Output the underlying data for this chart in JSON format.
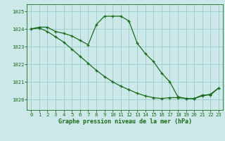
{
  "title": "Graphe pression niveau de la mer (hPa)",
  "background_color": "#cce8e8",
  "grid_color": "#99cccc",
  "line_color": "#1a6b1a",
  "xlim": [
    -0.5,
    23.5
  ],
  "ylim": [
    1019.4,
    1025.4
  ],
  "yticks": [
    1020,
    1021,
    1022,
    1023,
    1024,
    1025
  ],
  "xticks": [
    0,
    1,
    2,
    3,
    4,
    5,
    6,
    7,
    8,
    9,
    10,
    11,
    12,
    13,
    14,
    15,
    16,
    17,
    18,
    19,
    20,
    21,
    22,
    23
  ],
  "series1_x": [
    0,
    1,
    2,
    3,
    4,
    5,
    6,
    7,
    8,
    9,
    10,
    11,
    12,
    13,
    14,
    15,
    16,
    17,
    18,
    19,
    20,
    21,
    22,
    23
  ],
  "series1_y": [
    1024.0,
    1024.1,
    1024.1,
    1023.85,
    1023.75,
    1023.6,
    1023.35,
    1023.1,
    1024.25,
    1024.72,
    1024.72,
    1024.72,
    1024.45,
    1023.2,
    1022.6,
    1022.15,
    1021.5,
    1021.0,
    1020.15,
    1020.05,
    1020.05,
    1020.25,
    1020.25,
    1020.65
  ],
  "series2_x": [
    0,
    1,
    2,
    3,
    4,
    5,
    6,
    7,
    8,
    9,
    10,
    11,
    12,
    13,
    14,
    15,
    16,
    17,
    18,
    19,
    20,
    21,
    22,
    23
  ],
  "series2_y": [
    1024.0,
    1024.05,
    1023.85,
    1023.55,
    1023.25,
    1022.85,
    1022.45,
    1022.05,
    1021.65,
    1021.3,
    1021.0,
    1020.75,
    1020.55,
    1020.35,
    1020.2,
    1020.1,
    1020.05,
    1020.1,
    1020.1,
    1020.05,
    1020.05,
    1020.2,
    1020.3,
    1020.65
  ],
  "xlabel_fontsize": 6.0,
  "tick_fontsize": 5.2,
  "figsize": [
    3.2,
    2.0
  ],
  "dpi": 100
}
